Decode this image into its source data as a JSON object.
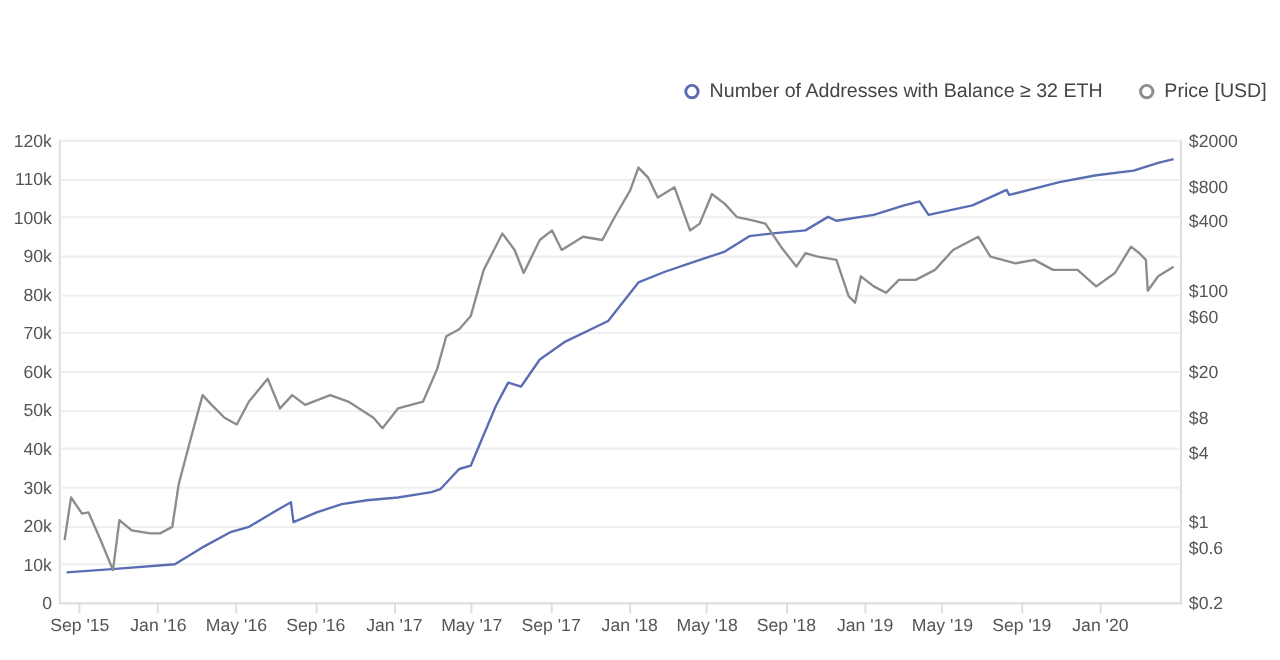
{
  "chart_data": {
    "type": "line",
    "legend": "top right",
    "grid": "y",
    "log": "y2",
    "xlim": [
      "2015-08-01",
      "2020-05-05"
    ],
    "xticks": [
      {
        "value": "2015-09-01",
        "label": "Sep '15"
      },
      {
        "value": "2016-01-01",
        "label": "Jan '16"
      },
      {
        "value": "2016-05-01",
        "label": "May '16"
      },
      {
        "value": "2016-09-01",
        "label": "Sep '16"
      },
      {
        "value": "2017-01-01",
        "label": "Jan '17"
      },
      {
        "value": "2017-05-01",
        "label": "May '17"
      },
      {
        "value": "2017-09-01",
        "label": "Sep '17"
      },
      {
        "value": "2018-01-01",
        "label": "Jan '18"
      },
      {
        "value": "2018-05-01",
        "label": "May '18"
      },
      {
        "value": "2018-09-01",
        "label": "Sep '18"
      },
      {
        "value": "2019-01-01",
        "label": "Jan '19"
      },
      {
        "value": "2019-05-01",
        "label": "May '19"
      },
      {
        "value": "2019-09-01",
        "label": "Sep '19"
      },
      {
        "value": "2020-01-01",
        "label": "Jan '20"
      }
    ],
    "ylim": [
      0,
      120000
    ],
    "yticks": [
      0,
      {
        "value": 10000,
        "label": "10k"
      },
      {
        "value": 20000,
        "label": "20k"
      },
      {
        "value": 30000,
        "label": "30k"
      },
      {
        "value": 40000,
        "label": "40k"
      },
      {
        "value": 50000,
        "label": "50k"
      },
      {
        "value": 60000,
        "label": "60k"
      },
      {
        "value": 70000,
        "label": "70k"
      },
      {
        "value": 80000,
        "label": "80k"
      },
      {
        "value": 90000,
        "label": "90k"
      },
      {
        "value": 100000,
        "label": "100k"
      },
      {
        "value": 110000,
        "label": "110k"
      },
      {
        "value": 120000,
        "label": "120k"
      }
    ],
    "y2lim": [
      0.2,
      2000
    ],
    "y2ticks": [
      {
        "value": 0.2,
        "label": "$0.2"
      },
      {
        "value": 0.6,
        "label": "$0.6"
      },
      {
        "value": 1,
        "label": "$1"
      },
      {
        "value": 4,
        "label": "$4"
      },
      {
        "value": 8,
        "label": "$8"
      },
      {
        "value": 20,
        "label": "$20"
      },
      {
        "value": 60,
        "label": "$60"
      },
      {
        "value": 100,
        "label": "$100"
      },
      {
        "value": 400,
        "label": "$400"
      },
      {
        "value": 800,
        "label": "$800"
      },
      {
        "value": 2000,
        "label": "$2000"
      }
    ],
    "series": [
      {
        "name": "Number of Addresses with Balance ≥ 32 ETH",
        "color": "#5a6db3",
        "x": [
          "2015-08-13",
          "2015-10-28",
          "2016-01-28",
          "2016-03-10",
          "2016-04-23",
          "2016-05-22",
          "2016-06-29",
          "2016-07-26",
          "2016-07-30",
          "2016-09-05",
          "2016-10-13",
          "2016-11-21",
          "2017-01-08",
          "2017-03-01",
          "2017-03-15",
          "2017-04-13",
          "2017-05-01",
          "2017-06-09",
          "2017-06-28",
          "2017-07-18",
          "2017-08-16",
          "2017-09-23",
          "2017-11-30",
          "2018-01-16",
          "2018-02-25",
          "2018-04-12",
          "2018-05-30",
          "2018-07-07",
          "2018-08-16",
          "2018-10-02",
          "2018-11-06",
          "2018-11-19",
          "2019-01-16",
          "2019-03-04",
          "2019-03-28",
          "2019-04-11",
          "2019-06-18",
          "2019-08-10",
          "2019-08-14",
          "2019-10-31",
          "2019-12-27",
          "2020-02-23",
          "2020-04-01",
          "2020-04-25"
        ],
        "values": [
          7800,
          8700,
          9900,
          14200,
          18200,
          19600,
          23400,
          26000,
          20800,
          23400,
          25500,
          26500,
          27200,
          28600,
          29400,
          34600,
          35500,
          51000,
          57000,
          56000,
          63000,
          67500,
          73000,
          83000,
          85700,
          88300,
          91000,
          95000,
          95800,
          96500,
          100000,
          99000,
          100500,
          103000,
          104000,
          100500,
          103000,
          107000,
          105700,
          109000,
          110800,
          112000,
          114000,
          115000
        ]
      },
      {
        "name": "Price [USD]",
        "color": "#8c8c8c",
        "axis": "y2",
        "x": [
          "2015-08-10",
          "2015-08-20",
          "2015-09-06",
          "2015-09-16",
          "2015-10-05",
          "2015-10-24",
          "2015-11-03",
          "2015-11-22",
          "2015-12-21",
          "2016-01-05",
          "2016-01-24",
          "2016-02-03",
          "2016-02-22",
          "2016-03-11",
          "2016-03-25",
          "2016-04-14",
          "2016-05-03",
          "2016-05-22",
          "2016-06-20",
          "2016-07-09",
          "2016-07-28",
          "2016-08-17",
          "2016-09-25",
          "2016-10-23",
          "2016-12-01",
          "2016-12-15",
          "2017-01-08",
          "2017-02-16",
          "2017-03-10",
          "2017-03-24",
          "2017-04-13",
          "2017-05-01",
          "2017-05-21",
          "2017-06-19",
          "2017-07-08",
          "2017-07-22",
          "2017-08-16",
          "2017-09-04",
          "2017-09-19",
          "2017-10-22",
          "2017-11-21",
          "2017-12-10",
          "2018-01-03",
          "2018-01-16",
          "2018-01-31",
          "2018-02-15",
          "2018-03-13",
          "2018-04-06",
          "2018-04-21",
          "2018-05-10",
          "2018-05-30",
          "2018-06-18",
          "2018-07-12",
          "2018-08-01",
          "2018-08-25",
          "2018-09-18",
          "2018-10-02",
          "2018-10-21",
          "2018-11-19",
          "2018-12-08",
          "2018-12-18",
          "2018-12-27",
          "2019-01-16",
          "2019-02-04",
          "2019-02-24",
          "2019-03-22",
          "2019-04-21",
          "2019-05-19",
          "2019-06-27",
          "2019-07-16",
          "2019-08-24",
          "2019-09-22",
          "2019-10-21",
          "2019-11-28",
          "2019-12-27",
          "2020-01-25",
          "2020-02-19",
          "2020-03-03",
          "2020-03-13",
          "2020-03-16",
          "2020-04-01",
          "2020-04-25"
        ],
        "values": [
          0.69,
          1.62,
          1.17,
          1.2,
          0.69,
          0.38,
          1.03,
          0.84,
          0.79,
          0.79,
          0.9,
          2.11,
          5.3,
          12.4,
          10.2,
          7.9,
          6.9,
          10.9,
          17.2,
          9.5,
          12.4,
          10.2,
          12.4,
          10.9,
          7.9,
          6.4,
          9.5,
          10.9,
          21,
          40,
          46,
          60,
          150,
          309,
          223,
          141,
          272,
          329,
          223,
          290,
          272,
          428,
          727,
          1150,
          942,
          633,
          776,
          329,
          377,
          679,
          558,
          428,
          402,
          377,
          238,
          160,
          209,
          195,
          183,
          89,
          78,
          132,
          108,
          95,
          123,
          123,
          150,
          223,
          290,
          195,
          171,
          183,
          150,
          150,
          108,
          141,
          238,
          209,
          183,
          99,
          132,
          160
        ]
      }
    ]
  }
}
